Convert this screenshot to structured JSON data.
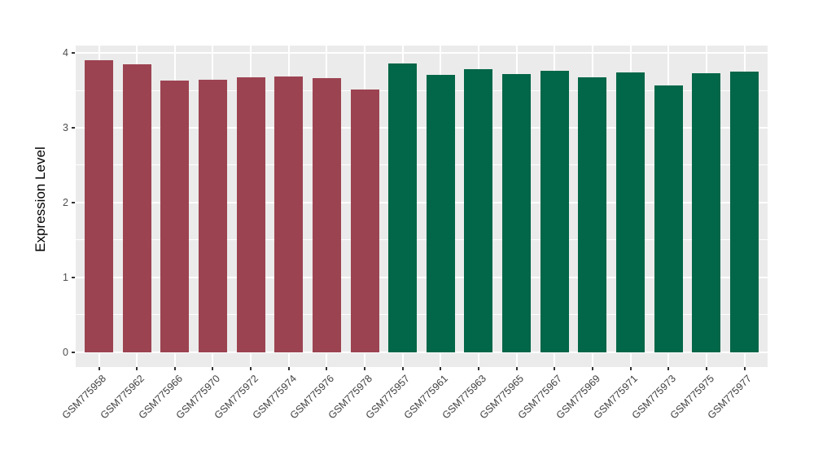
{
  "figure": {
    "background": "#FFFFFF",
    "panel_background": "#EBEBEB",
    "grid_color": "#FFFFFF"
  },
  "chart_data": {
    "type": "bar",
    "title": "",
    "xlabel": "",
    "ylabel": "Expression Level",
    "ylim": [
      -0.2,
      4.1
    ],
    "yticks": [
      0,
      1,
      2,
      3,
      4
    ],
    "yticks_minor": [
      0.5,
      1.5,
      2.5,
      3.5
    ],
    "grid": "on",
    "legend": "none",
    "group_colors": {
      "left_group": "#9C4351",
      "right_group": "#026648"
    },
    "categories": [
      "GSM775958",
      "GSM775962",
      "GSM775966",
      "GSM775970",
      "GSM775972",
      "GSM775974",
      "GSM775976",
      "GSM775978",
      "GSM775957",
      "GSM775961",
      "GSM775963",
      "GSM775965",
      "GSM775967",
      "GSM775969",
      "GSM775971",
      "GSM775973",
      "GSM775975",
      "GSM775977"
    ],
    "values": [
      3.9,
      3.85,
      3.63,
      3.64,
      3.68,
      3.69,
      3.67,
      3.51,
      3.86,
      3.71,
      3.78,
      3.72,
      3.76,
      3.68,
      3.74,
      3.57,
      3.73,
      3.75
    ],
    "bar_colors": [
      "#9C4351",
      "#9C4351",
      "#9C4351",
      "#9C4351",
      "#9C4351",
      "#9C4351",
      "#9C4351",
      "#9C4351",
      "#026648",
      "#026648",
      "#026648",
      "#026648",
      "#026648",
      "#026648",
      "#026648",
      "#026648",
      "#026648",
      "#026648"
    ]
  }
}
